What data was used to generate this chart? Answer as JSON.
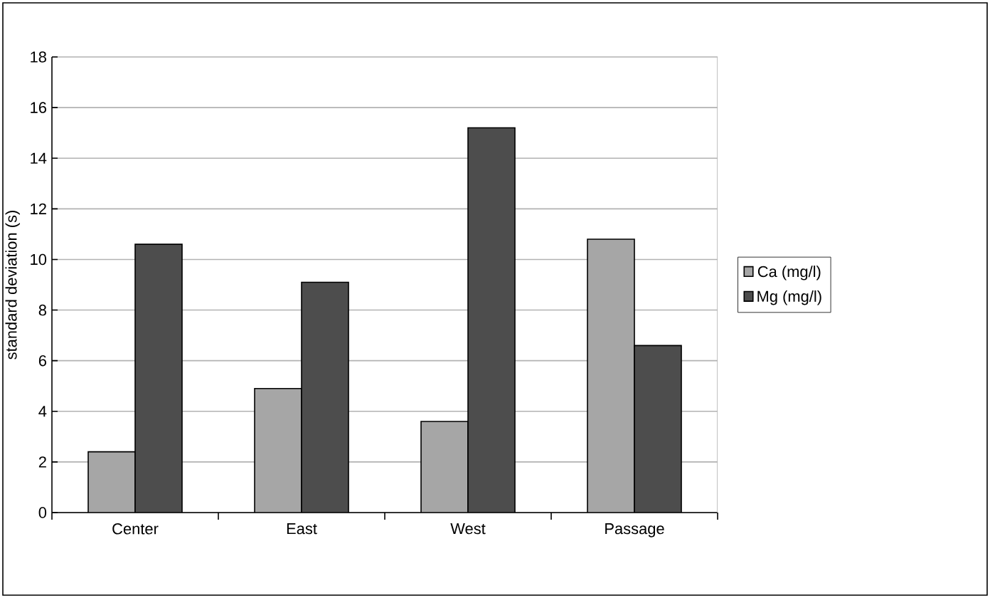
{
  "chart_data": {
    "type": "bar",
    "ylabel": "standard deviation (s)",
    "categories": [
      "Center",
      "East",
      "West",
      "Passage"
    ],
    "series": [
      {
        "name": "Ca (mg/l)",
        "color": "#a6a6a6",
        "values": [
          2.4,
          4.9,
          3.6,
          10.8
        ]
      },
      {
        "name": "Mg (mg/l)",
        "color": "#4d4d4d",
        "values": [
          10.6,
          9.1,
          15.2,
          6.6
        ]
      }
    ],
    "ylim": [
      0,
      18
    ],
    "yticks": [
      0,
      2,
      4,
      6,
      8,
      10,
      12,
      14,
      16,
      18
    ],
    "grid": "y",
    "legend": "right"
  }
}
